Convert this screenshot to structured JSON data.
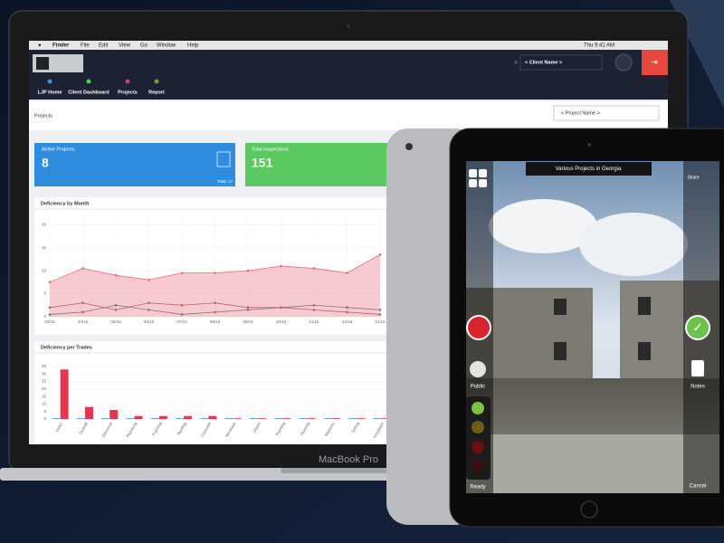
{
  "menu_bar": {
    "app": "Finder",
    "items": [
      "File",
      "Edit",
      "View",
      "Go",
      "Window",
      "Help"
    ],
    "clock": "Thu 9:41 AM"
  },
  "header": {
    "client_select": "< Client Name >"
  },
  "nav": [
    "LJP Home",
    "Client Dashboard",
    "Projects",
    "Report"
  ],
  "page_title": "Projects",
  "project_select": "< Project Name >",
  "cards": [
    {
      "title": "Active Projects",
      "value": 8,
      "footer": "Total: 17"
    },
    {
      "title": "Total Inspections",
      "value": 151
    }
  ],
  "line_chart": {
    "type": "line",
    "title": "Deficiency by Month",
    "x": [
      "03/15",
      "04/15",
      "05/15",
      "06/15",
      "07/15",
      "08/15",
      "09/15",
      "10/15",
      "11/15",
      "12/15",
      "01/16"
    ],
    "series": [
      {
        "color": "#e8677a",
        "values": [
          7.5,
          10.5,
          9,
          8,
          9.5,
          9.5,
          10,
          11,
          10.5,
          9.5,
          13.5
        ]
      },
      {
        "color": "#b0606e",
        "values": [
          2,
          3,
          1.5,
          3,
          2.5,
          3,
          2,
          2,
          1.5,
          1,
          0.5
        ]
      },
      {
        "color": "#8a7078",
        "values": [
          0.5,
          1,
          2.5,
          1.5,
          0.5,
          1,
          1.5,
          2,
          2.5,
          2,
          1.5
        ]
      }
    ],
    "ylim": [
      0,
      22
    ],
    "yticks": [
      0,
      5,
      10,
      15,
      20
    ]
  },
  "bar_chart": {
    "type": "bar",
    "title": "Deficiency per Trades",
    "categories": [
      "HVAC",
      "Drywall",
      "Electrical",
      "Plumbing",
      "Framing",
      "Roofing",
      "Concrete",
      "Windows",
      "Doors",
      "Painting",
      "Flooring",
      "Masonry",
      "Siding",
      "Insulation"
    ],
    "series": [
      {
        "color": "#e8344e",
        "values": [
          33,
          8,
          6,
          2,
          2,
          2,
          2,
          0.5,
          0.5,
          0.5,
          0.5,
          0.5,
          0.5,
          0.5
        ]
      },
      {
        "color": "#4a90d9",
        "values": [
          0.5,
          0.5,
          0.5,
          0.5,
          0.5,
          0.5,
          0.5,
          0.5,
          0.5,
          0.5,
          0.5,
          0.5,
          0.5,
          0.5
        ]
      }
    ],
    "ylim": [
      0,
      38
    ],
    "yticks": [
      0,
      5,
      10,
      15,
      20,
      25,
      30,
      35
    ]
  },
  "laptop_label": "MacBook Pro",
  "tablet": {
    "banner": "Various Projects in Georgia",
    "share": "Share",
    "public": "Public",
    "notes": "Notes",
    "ready": "Ready",
    "cancel": "Cancel"
  }
}
